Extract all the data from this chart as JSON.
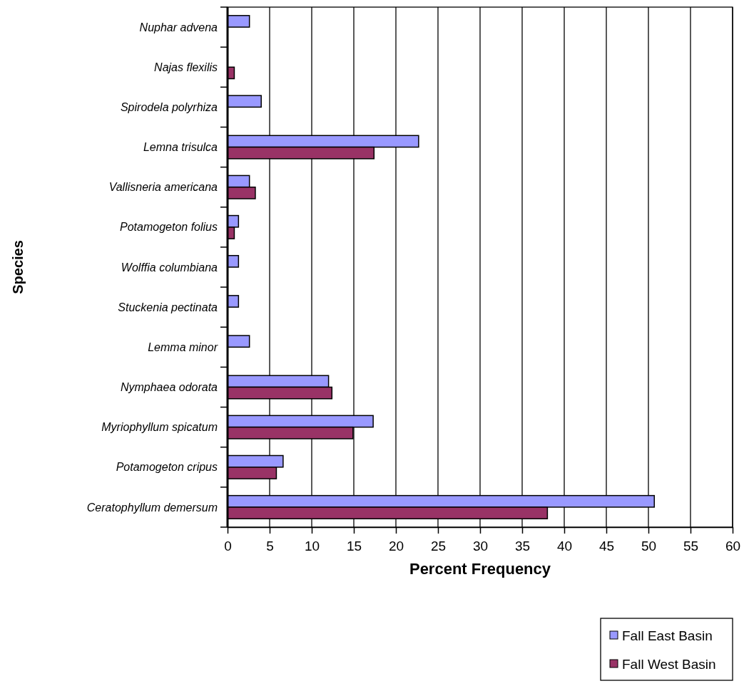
{
  "chart_data": {
    "type": "bar",
    "orientation": "horizontal",
    "ylabel": "Species",
    "xlabel": "Percent Frequency",
    "categories": [
      "Nuphar advena",
      "Najas flexilis",
      "Spirodela polyrhiza",
      "Lemna trisulca",
      "Vallisneria americana",
      "Potamogeton folius",
      "Wolffia columbiana",
      "Stuckenia pectinata",
      "Lemma minor",
      "Nymphaea odorata",
      "Myriophyllum spicatum",
      "Potamogeton cripus",
      "Ceratophyllum demersum"
    ],
    "series": [
      {
        "name": "Fall East Basin",
        "color": "#9999ff",
        "values": [
          2.6,
          0,
          4.0,
          22.7,
          2.6,
          1.3,
          1.3,
          1.3,
          2.6,
          12.0,
          17.3,
          6.6,
          50.7
        ]
      },
      {
        "name": "Fall West Basin",
        "color": "#993366",
        "values": [
          0,
          0.8,
          0,
          17.4,
          3.3,
          0.8,
          0,
          0,
          0,
          12.4,
          14.9,
          5.8,
          38.0
        ]
      }
    ],
    "xlim": [
      0,
      60
    ],
    "xticks": [
      0,
      5,
      10,
      15,
      20,
      25,
      30,
      35,
      40,
      45,
      50,
      55,
      60
    ],
    "grid": "x",
    "legend": "bottom right"
  }
}
